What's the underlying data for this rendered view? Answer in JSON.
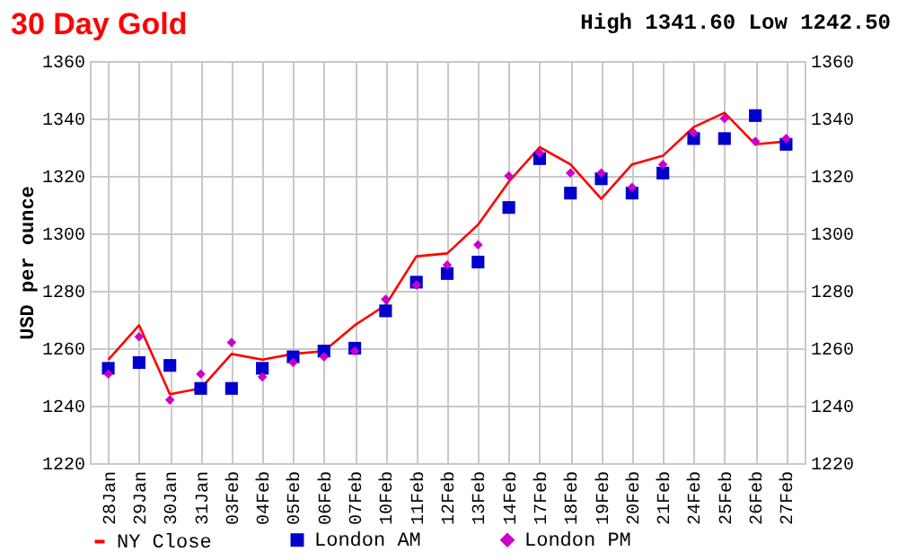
{
  "chart_data": {
    "type": "line",
    "title": "30 Day Gold",
    "annotations": [
      "High 1341.60 Low 1242.50"
    ],
    "ylabel": "USD per ounce",
    "categories": [
      "28Jan",
      "29Jan",
      "30Jan",
      "31Jan",
      "03Feb",
      "04Feb",
      "05Feb",
      "06Feb",
      "07Feb",
      "10Feb",
      "11Feb",
      "12Feb",
      "13Feb",
      "14Feb",
      "17Feb",
      "18Feb",
      "19Feb",
      "20Feb",
      "21Feb",
      "24Feb",
      "25Feb",
      "26Feb",
      "27Feb"
    ],
    "series": [
      {
        "name": "NY Close",
        "type": "line",
        "color": "#ff0000",
        "marker": "none",
        "values": [
          1256,
          1268,
          1244,
          1246,
          1258,
          1256,
          1258,
          1259,
          1268,
          1275,
          1292,
          1293,
          1303,
          1318,
          1330,
          1324,
          1312,
          1324,
          1327,
          1337,
          1342,
          1331,
          1332
        ]
      },
      {
        "name": "London AM",
        "type": "scatter",
        "color": "#0000cc",
        "marker": "square",
        "values": [
          1253,
          1255,
          1254,
          1246,
          1246,
          1253,
          1257,
          1259,
          1260,
          1273,
          1283,
          1286,
          1290,
          1309,
          1326,
          1314,
          1319,
          1314,
          1321,
          1333,
          1333,
          1341,
          1331
        ]
      },
      {
        "name": "London PM",
        "type": "scatter",
        "color": "#cc00cc",
        "marker": "diamond",
        "values": [
          1251,
          1264,
          1242,
          1251,
          1262,
          1250,
          1255,
          1257,
          1259,
          1277,
          1282,
          1289,
          1296,
          1320,
          1328,
          1321,
          1321,
          1316,
          1324,
          1335,
          1340,
          1332,
          1333
        ]
      }
    ],
    "ylim": [
      1220,
      1360
    ],
    "yticks": [
      1220,
      1240,
      1260,
      1280,
      1300,
      1320,
      1340,
      1360
    ],
    "y2lim": [
      1220,
      1360
    ],
    "y2ticks": [
      1220,
      1240,
      1260,
      1280,
      1300,
      1320,
      1340,
      1360
    ],
    "grid": true,
    "legend": "bottom"
  }
}
